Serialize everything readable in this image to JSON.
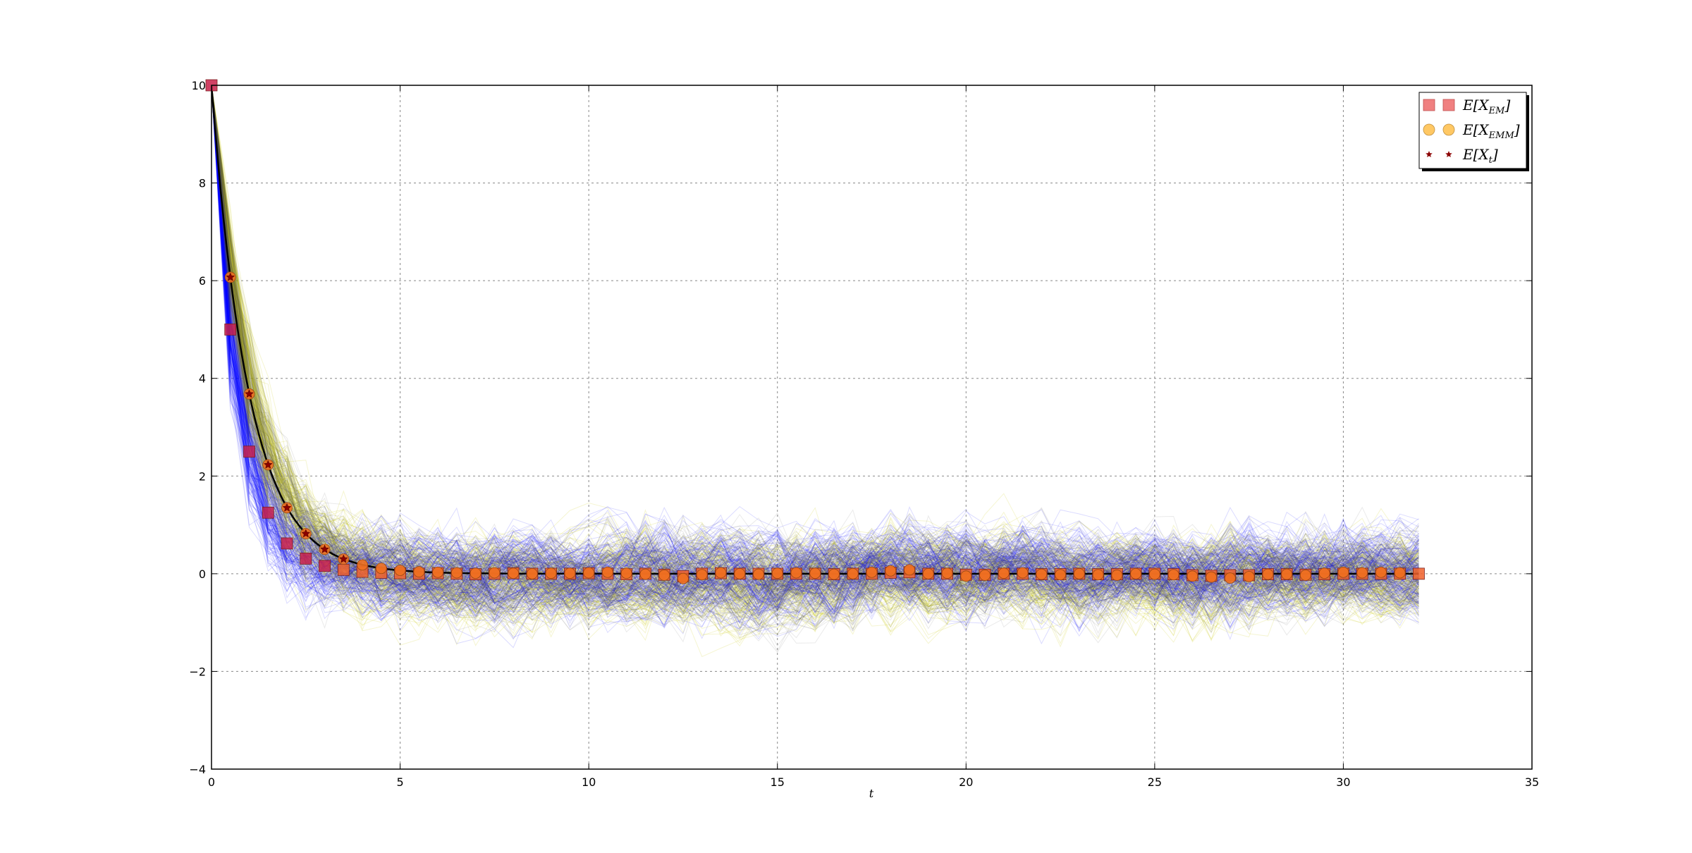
{
  "chart_data": {
    "type": "line",
    "title": "",
    "xlabel": "t",
    "ylabel": "",
    "xlim": [
      0,
      35
    ],
    "ylim": [
      -4,
      10
    ],
    "x_ticks": [
      0,
      5,
      10,
      15,
      20,
      25,
      30,
      35
    ],
    "y_ticks": [
      -4,
      -2,
      0,
      2,
      4,
      6,
      8,
      10
    ],
    "x_tick_labels": [
      "0",
      "5",
      "10",
      "15",
      "20",
      "25",
      "30",
      "35"
    ],
    "y_tick_labels": [
      "−4",
      "−2",
      "0",
      "2",
      "4",
      "6",
      "8",
      "10"
    ],
    "grid": true,
    "legend_position": "top-right",
    "colors": {
      "em_paths": "#0000ff",
      "emm_paths": "#c8c800",
      "exact_mean": "#000000",
      "em_marker": "#f08080",
      "emm_marker": "#ffc864",
      "star_marker": "#8b0000"
    },
    "background_paths": {
      "description_series": [
        "EM sample paths",
        "EMM sample paths"
      ],
      "initial_value": 10,
      "stationary_band": [
        -2.2,
        2.2
      ]
    },
    "exact_mean": {
      "x": [
        0,
        0.5,
        1,
        1.5,
        2,
        2.5,
        3,
        3.5,
        4,
        5,
        6,
        8,
        10,
        15,
        20,
        25,
        30,
        32
      ],
      "y": [
        10,
        6.07,
        3.68,
        2.23,
        1.35,
        0.82,
        0.5,
        0.3,
        0.18,
        0.07,
        0.02,
        0.0,
        0.0,
        0.0,
        0.0,
        0.0,
        0.0,
        0.0
      ]
    },
    "series": [
      {
        "name": "E[X_EM]",
        "marker": "square",
        "x": [
          0,
          0.5,
          1,
          1.5,
          2,
          2.5,
          3,
          3.5,
          4,
          4.5,
          5,
          5.5,
          6,
          6.5,
          7,
          7.5,
          8,
          8.5,
          9,
          9.5,
          10,
          10.5,
          11,
          11.5,
          12,
          12.5,
          13,
          13.5,
          14,
          14.5,
          15,
          15.5,
          16,
          16.5,
          17,
          17.5,
          18,
          18.5,
          19,
          19.5,
          20,
          20.5,
          21,
          21.5,
          22,
          22.5,
          23,
          23.5,
          24,
          24.5,
          25,
          25.5,
          26,
          26.5,
          27,
          27.5,
          28,
          28.5,
          29,
          29.5,
          30,
          30.5,
          31,
          31.5,
          32
        ],
        "y": [
          10,
          5.0,
          2.5,
          1.25,
          0.62,
          0.31,
          0.16,
          0.08,
          0.04,
          0.02,
          0.01,
          0.0,
          0.01,
          0.0,
          -0.01,
          0.0,
          0.01,
          0.0,
          0.0,
          0.0,
          0.01,
          0.0,
          -0.01,
          0.0,
          -0.02,
          -0.05,
          0.0,
          0.01,
          0.0,
          0.0,
          0.0,
          0.0,
          0.0,
          -0.01,
          0.0,
          0.0,
          0.02,
          0.03,
          0.0,
          0.0,
          -0.02,
          -0.02,
          0.0,
          0.0,
          -0.01,
          -0.01,
          0.0,
          -0.01,
          -0.01,
          0.0,
          0.0,
          -0.01,
          -0.03,
          -0.04,
          -0.03,
          -0.03,
          -0.01,
          -0.01,
          -0.02,
          -0.01,
          0.0,
          0.0,
          0.0,
          0.0,
          0.0
        ]
      },
      {
        "name": "E[X_EMM]",
        "marker": "circle",
        "x": [
          0.5,
          1,
          1.5,
          2,
          2.5,
          3,
          3.5,
          4,
          4.5,
          5,
          5.5,
          6,
          6.5,
          7,
          7.5,
          8,
          8.5,
          9,
          9.5,
          10,
          10.5,
          11,
          11.5,
          12,
          12.5,
          13,
          13.5,
          14,
          14.5,
          15,
          15.5,
          16,
          16.5,
          17,
          17.5,
          18,
          18.5,
          19,
          19.5,
          20,
          20.5,
          21,
          21.5,
          22,
          22.5,
          23,
          23.5,
          24,
          24.5,
          25,
          25.5,
          26,
          26.5,
          27,
          27.5,
          28,
          28.5,
          29,
          29.5,
          30,
          30.5,
          31,
          31.5
        ],
        "y": [
          6.07,
          3.68,
          2.23,
          1.35,
          0.82,
          0.5,
          0.3,
          0.18,
          0.11,
          0.07,
          0.04,
          0.03,
          0.02,
          0.01,
          0.02,
          0.01,
          0.0,
          0.01,
          0.01,
          0.02,
          0.03,
          0.01,
          -0.01,
          -0.03,
          -0.1,
          -0.02,
          0.02,
          0.0,
          -0.01,
          0.01,
          0.02,
          0.01,
          -0.01,
          0.0,
          0.03,
          0.06,
          0.08,
          0.0,
          0.01,
          -0.05,
          -0.03,
          0.01,
          0.02,
          -0.01,
          -0.02,
          0.0,
          -0.02,
          -0.03,
          0.0,
          -0.01,
          -0.02,
          -0.05,
          -0.07,
          -0.09,
          -0.06,
          -0.01,
          -0.01,
          -0.03,
          0.01,
          0.03,
          0.02,
          0.03,
          0.02
        ]
      },
      {
        "name": "E[X_t]",
        "marker": "star",
        "x": [
          0.5,
          1,
          1.5,
          2,
          2.5,
          3,
          3.5
        ],
        "y": [
          6.07,
          3.68,
          2.23,
          1.35,
          0.82,
          0.5,
          0.3
        ]
      }
    ],
    "legend": {
      "entries": [
        {
          "label": "E[X",
          "sub": "EM",
          "close": "]",
          "marker": "square"
        },
        {
          "label": "E[X",
          "sub": "EMM",
          "close": "]",
          "marker": "circle"
        },
        {
          "label": "E[X",
          "sub": "t",
          "close": "]",
          "marker": "star"
        }
      ]
    }
  }
}
